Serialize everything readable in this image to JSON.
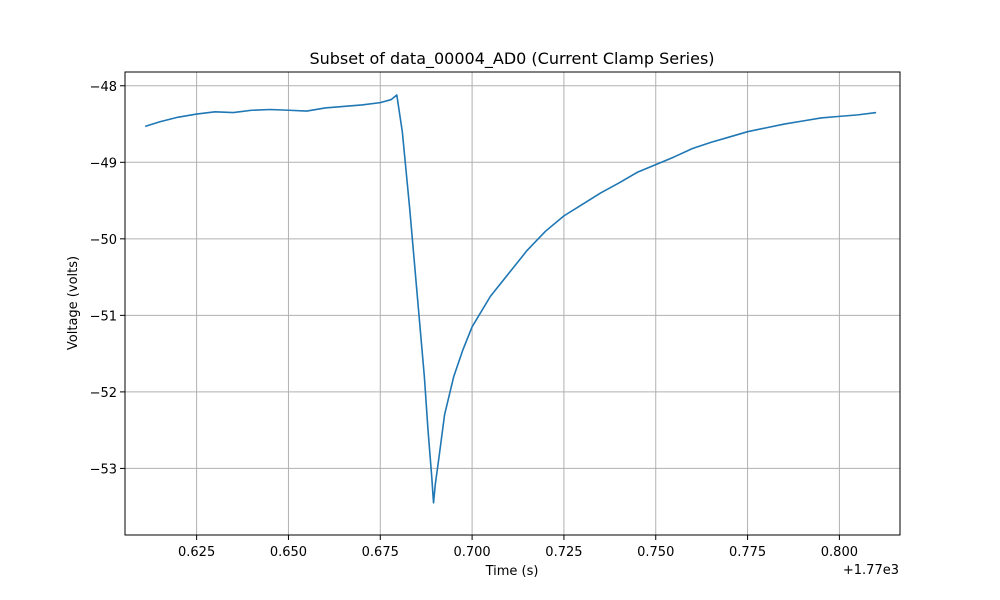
{
  "chart_data": {
    "type": "line",
    "title": "Subset of data_00004_AD0 (Current Clamp Series)",
    "xlabel": "Time (s)",
    "ylabel": "Voltage (volts)",
    "x_offset_label": "+1.77e3",
    "xlim": [
      0.6055,
      0.8165
    ],
    "ylim": [
      -53.87,
      -47.82
    ],
    "x_ticks": [
      0.625,
      0.65,
      0.675,
      0.7,
      0.725,
      0.75,
      0.775,
      0.8
    ],
    "x_tick_labels": [
      "0.625",
      "0.650",
      "0.675",
      "0.700",
      "0.725",
      "0.750",
      "0.775",
      "0.800"
    ],
    "y_ticks": [
      -48,
      -49,
      -50,
      -51,
      -52,
      -53
    ],
    "y_tick_labels": [
      "−48",
      "−49",
      "−50",
      "−51",
      "−52",
      "−53"
    ],
    "grid": true,
    "line_color": "#1f77b4",
    "series": [
      {
        "x": [
          0.611,
          0.615,
          0.62,
          0.625,
          0.63,
          0.635,
          0.64,
          0.645,
          0.65,
          0.655,
          0.66,
          0.665,
          0.67,
          0.675,
          0.678,
          0.6795,
          0.681,
          0.683,
          0.685,
          0.687,
          0.688,
          0.689,
          0.6895,
          0.69,
          0.691,
          0.6925,
          0.695,
          0.6975,
          0.7,
          0.705,
          0.71,
          0.715,
          0.72,
          0.725,
          0.73,
          0.735,
          0.74,
          0.745,
          0.75,
          0.755,
          0.76,
          0.765,
          0.77,
          0.775,
          0.78,
          0.785,
          0.79,
          0.795,
          0.8,
          0.805,
          0.81
        ],
        "y": [
          -48.53,
          -48.47,
          -48.41,
          -48.37,
          -48.34,
          -48.35,
          -48.32,
          -48.31,
          -48.32,
          -48.33,
          -48.29,
          -48.27,
          -48.25,
          -48.22,
          -48.18,
          -48.12,
          -48.6,
          -49.6,
          -50.7,
          -51.8,
          -52.5,
          -53.1,
          -53.45,
          -53.2,
          -52.85,
          -52.3,
          -51.8,
          -51.45,
          -51.15,
          -50.75,
          -50.45,
          -50.15,
          -49.9,
          -49.7,
          -49.55,
          -49.4,
          -49.27,
          -49.13,
          -49.03,
          -48.93,
          -48.82,
          -48.74,
          -48.67,
          -48.6,
          -48.55,
          -48.5,
          -48.46,
          -48.42,
          -48.4,
          -48.38,
          -48.35
        ]
      }
    ]
  }
}
